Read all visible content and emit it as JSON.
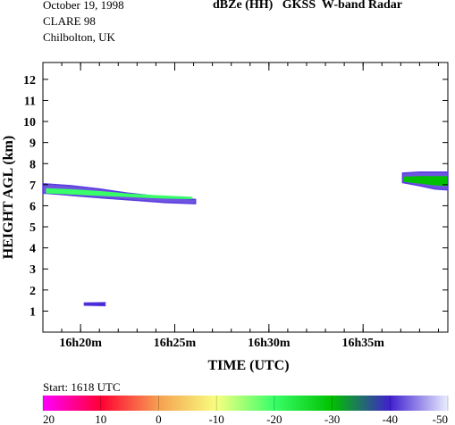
{
  "header": {
    "date": "October 19, 1998",
    "campaign": "CLARE 98",
    "location": "Chilbolton, UK",
    "title": "dBZe (HH)   GKSS  W-band Radar"
  },
  "footer": {
    "start_label": "Start: 1618 UTC"
  },
  "chart_data": {
    "type": "heatmap",
    "title": "dBZe (HH)   GKSS  W-band Radar",
    "xlabel": "TIME (UTC)",
    "ylabel": "HEIGHT AGL (km)",
    "x_unit": "minutes past 16h00 UTC",
    "xlim": [
      18,
      39.5
    ],
    "ylim": [
      0,
      12.8
    ],
    "x_ticks": [
      {
        "value": 20,
        "label": "16h20m"
      },
      {
        "value": 25,
        "label": "16h25m"
      },
      {
        "value": 30,
        "label": "16h30m"
      },
      {
        "value": 35,
        "label": "16h35m"
      }
    ],
    "y_ticks": [
      1,
      2,
      3,
      4,
      5,
      6,
      7,
      8,
      9,
      10,
      11,
      12
    ],
    "colorbar": {
      "label_unit": "dBZe",
      "ticks": [
        20,
        10,
        0,
        -10,
        -20,
        -30,
        -40,
        -50
      ],
      "range": [
        20,
        -50
      ],
      "colors": [
        "#ff00ff",
        "#ff0033",
        "#f5a050",
        "#f8ff80",
        "#38ff68",
        "#00c000",
        "#4020d0",
        "#eaeeff"
      ]
    },
    "echoes": [
      {
        "name": "mid-level layer",
        "polygon": [
          [
            18,
            7.05
          ],
          [
            19.5,
            6.95
          ],
          [
            21,
            6.8
          ],
          [
            22.5,
            6.6
          ],
          [
            24,
            6.45
          ],
          [
            25.5,
            6.35
          ],
          [
            26.1,
            6.3
          ],
          [
            26.1,
            6.1
          ],
          [
            24.5,
            6.15
          ],
          [
            23,
            6.25
          ],
          [
            21.5,
            6.35
          ],
          [
            20,
            6.45
          ],
          [
            18.8,
            6.55
          ],
          [
            18,
            6.6
          ]
        ],
        "core_dBZe": -24
      },
      {
        "name": "upper layer",
        "polygon": [
          [
            37.1,
            7.55
          ],
          [
            38,
            7.6
          ],
          [
            39.5,
            7.6
          ],
          [
            39.5,
            6.75
          ],
          [
            38.8,
            6.8
          ],
          [
            38,
            6.95
          ],
          [
            37.1,
            7.1
          ]
        ],
        "core_dBZe": -26
      },
      {
        "name": "low-level echo",
        "polygon": [
          [
            20.2,
            1.38
          ],
          [
            21.3,
            1.4
          ],
          [
            21.3,
            1.26
          ],
          [
            20.2,
            1.28
          ]
        ],
        "core_dBZe": -42
      }
    ]
  }
}
